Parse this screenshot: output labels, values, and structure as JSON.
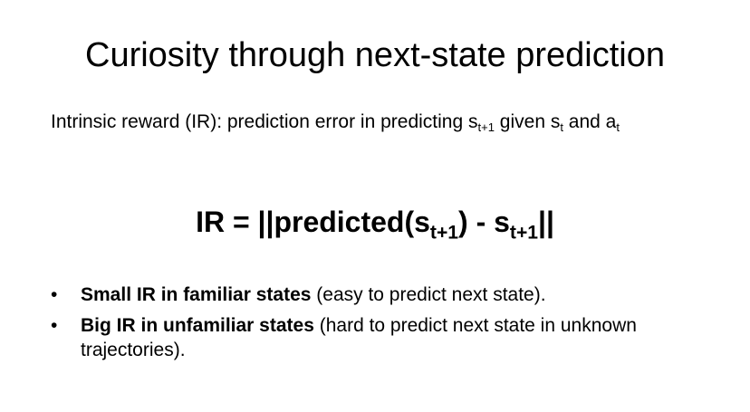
{
  "slide": {
    "title": "Curiosity through next-state prediction",
    "subtitle": {
      "prefix": "Intrinsic reward (IR): prediction error in predicting s",
      "sub1": "t+1",
      "mid1": " given s",
      "sub2": "t",
      "mid2": " and a",
      "sub3": "t"
    },
    "formula": {
      "part1": "IR = ||predicted(s",
      "sub1": "t+1",
      "part2": ") - s",
      "sub2": "t+1",
      "part3": "||"
    },
    "bullets": [
      {
        "marker": "•",
        "bold": "Small IR in familiar states",
        "rest": " (easy to predict next state)."
      },
      {
        "marker": "•",
        "bold": "Big IR in unfamiliar states",
        "rest": " (hard to predict next state in unknown trajectories)."
      }
    ]
  }
}
